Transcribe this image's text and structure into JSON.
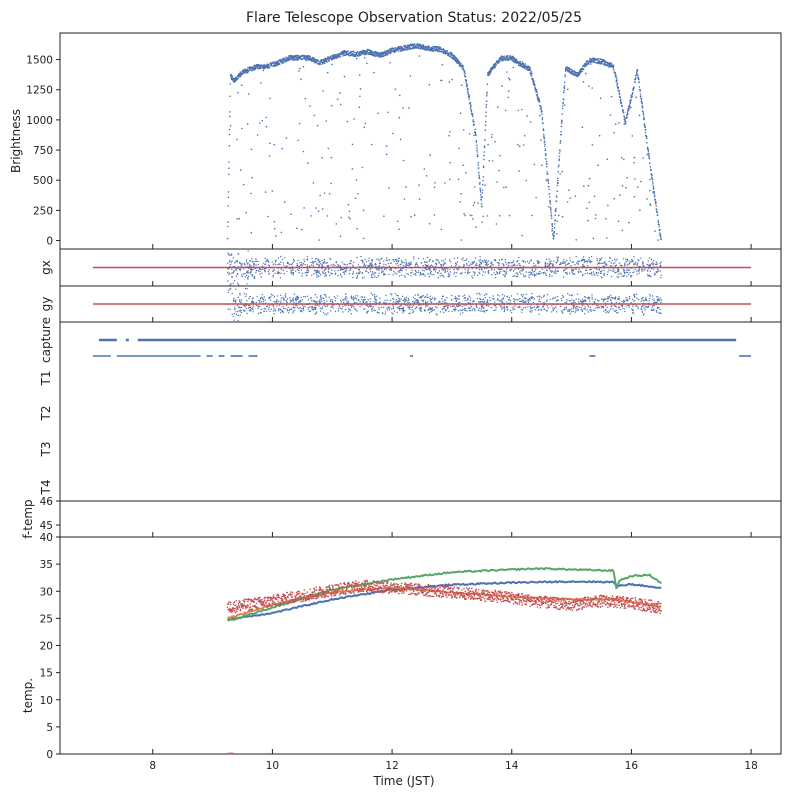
{
  "chart_data": {
    "type": "scatter",
    "title": "Flare Telescope Observation Status: 2022/05/25",
    "xlabel": "Time (JST)",
    "xlim": [
      6.45,
      18.5
    ],
    "xticks": [
      "8",
      "10",
      "12",
      "14",
      "16",
      "18"
    ],
    "colors": {
      "blue": "#4c72b0",
      "orange": "#dd8452",
      "green": "#55a868",
      "red": "#c44e52"
    },
    "panels": [
      {
        "id": "brightness",
        "ylabel": "Brightness",
        "ylim": [
          -70,
          1720
        ],
        "yticks": [
          "0",
          "250",
          "500",
          "750",
          "1000",
          "1250",
          "1500"
        ],
        "series": [
          {
            "color": "blue",
            "envelope_x": [
              9.25,
              9.3,
              9.35,
              9.5,
              9.7,
              10.0,
              10.3,
              10.6,
              10.8,
              11.0,
              11.2,
              11.4,
              11.6,
              11.8,
              12.0,
              12.2,
              12.4,
              12.6,
              12.8,
              13.0,
              13.2,
              13.4,
              13.5,
              13.6,
              13.8,
              14.0,
              14.1,
              14.3,
              14.5,
              14.7,
              14.9,
              15.1,
              15.3,
              15.5,
              15.7,
              15.9,
              16.1,
              16.3,
              16.5
            ],
            "envelope_y": [
              10,
              1390,
              1350,
              1420,
              1460,
              1480,
              1540,
              1540,
              1500,
              1540,
              1580,
              1570,
              1590,
              1560,
              1600,
              1620,
              1640,
              1620,
              1610,
              1560,
              1450,
              900,
              300,
              1400,
              1530,
              1540,
              1500,
              1450,
              1100,
              30,
              1450,
              1400,
              1520,
              1510,
              1470,
              1000,
              1430,
              700,
              10
            ]
          }
        ]
      },
      {
        "id": "gx",
        "ylabel": "gx",
        "series": [
          {
            "name": "",
            "color": "blue",
            "x_range": [
              9.25,
              16.5
            ],
            "band": 0.5
          },
          {
            "name": "",
            "color": "red",
            "x_range": [
              7.0,
              18.0
            ],
            "y": 0.0
          }
        ]
      },
      {
        "id": "gy",
        "ylabel": "gy",
        "series": [
          {
            "name": "",
            "color": "blue",
            "x_range": [
              9.25,
              16.5
            ],
            "band": 0.5
          },
          {
            "name": "",
            "color": "red",
            "x_range": [
              7.0,
              18.0
            ],
            "y": 0.0
          }
        ]
      },
      {
        "id": "capture",
        "ylabels": [
          "capture",
          "T1",
          "T2",
          "T3",
          "T4"
        ],
        "series": [
          {
            "name": "capture",
            "color": "blue",
            "segments": [
              [
                7.1,
                7.4
              ],
              [
                7.55,
                7.6
              ],
              [
                7.75,
                17.75
              ]
            ]
          },
          {
            "name": "T1",
            "color": "blue",
            "segments": [
              [
                7.0,
                7.3
              ],
              [
                7.4,
                8.8
              ],
              [
                8.9,
                9.0
              ],
              [
                9.1,
                9.2
              ],
              [
                9.3,
                9.5
              ],
              [
                9.6,
                9.75
              ],
              [
                12.3,
                12.35
              ],
              [
                15.3,
                15.4
              ],
              [
                17.8,
                18.0
              ]
            ]
          }
        ]
      },
      {
        "id": "f-temp",
        "ylabel": "f-temp",
        "ylim": [
          44.5,
          46
        ],
        "yticks": [
          "45",
          "46"
        ]
      },
      {
        "id": "temp",
        "ylabel": "temp.",
        "ylim": [
          0,
          40
        ],
        "yticks": [
          "0",
          "5",
          "10",
          "15",
          "20",
          "25",
          "30",
          "35",
          "40"
        ],
        "series": [
          {
            "name": "",
            "color": "blue",
            "x": [
              9.25,
              10.0,
              11.0,
              12.0,
              13.0,
              14.0,
              15.0,
              15.7,
              15.75,
              16.0,
              16.5
            ],
            "y": [
              24.8,
              26.0,
              28.5,
              30.3,
              31.2,
              31.6,
              31.8,
              31.7,
              31.0,
              31.3,
              30.6
            ]
          },
          {
            "name": "",
            "color": "orange",
            "x": [
              9.25,
              10.0,
              11.0,
              12.0,
              13.0,
              14.0,
              15.0,
              15.7,
              16.0,
              16.5
            ],
            "y": [
              25.0,
              27.5,
              29.8,
              30.7,
              29.8,
              29.0,
              28.5,
              28.5,
              28.0,
              27.2
            ]
          },
          {
            "name": "",
            "color": "green",
            "x": [
              9.25,
              10.0,
              11.0,
              12.0,
              13.0,
              14.0,
              14.5,
              15.0,
              15.7,
              15.75,
              15.8,
              16.0,
              16.3,
              16.5
            ],
            "y": [
              24.5,
              27.0,
              30.3,
              32.2,
              33.5,
              34.0,
              34.2,
              34.0,
              33.8,
              30.5,
              32.0,
              32.8,
              33.0,
              31.5
            ]
          },
          {
            "name": "",
            "color": "red",
            "x": [
              9.25,
              10.0,
              11.0,
              11.5,
              12.0,
              13.0,
              14.0,
              14.5,
              15.0,
              15.5,
              16.0,
              16.5
            ],
            "y": [
              27.0,
              28.2,
              30.2,
              31.0,
              30.7,
              29.8,
              28.8,
              28.0,
              27.5,
              28.2,
              27.8,
              27.0
            ]
          }
        ]
      }
    ]
  }
}
